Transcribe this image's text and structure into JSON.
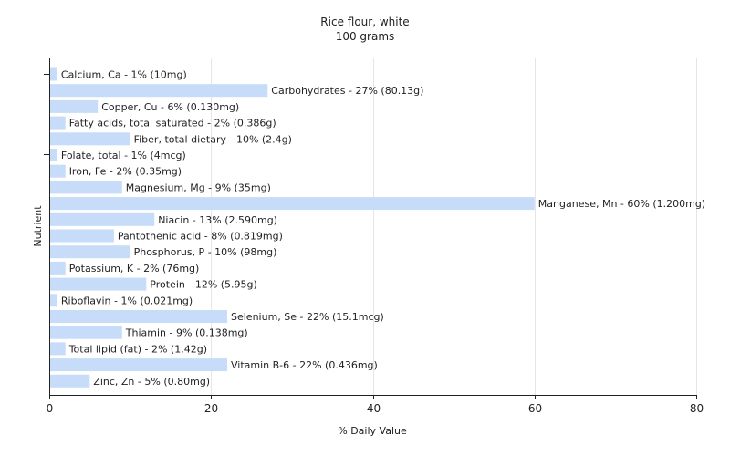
{
  "chart_data": {
    "type": "bar",
    "orientation": "horizontal",
    "title": "Rice flour, white",
    "subtitle": "100 grams",
    "xlabel": "% Daily Value",
    "ylabel": "Nutrient",
    "xlim": [
      0,
      80
    ],
    "x_ticks": [
      "0",
      "20",
      "40",
      "60",
      "80"
    ],
    "x_tick_values": [
      0,
      20,
      40,
      60,
      80
    ],
    "grid": true,
    "colors": {
      "bar": "#c6dcf9",
      "grid": "#e6e6e6",
      "axis": "#222222"
    },
    "categories": [
      "Calcium, Ca",
      "Carbohydrates",
      "Copper, Cu",
      "Fatty acids, total saturated",
      "Fiber, total dietary",
      "Folate, total",
      "Iron, Fe",
      "Magnesium, Mg",
      "Manganese, Mn",
      "Niacin",
      "Pantothenic acid",
      "Phosphorus, P",
      "Potassium, K",
      "Protein",
      "Riboflavin",
      "Selenium, Se",
      "Thiamin",
      "Total lipid (fat)",
      "Vitamin B-6",
      "Zinc, Zn"
    ],
    "values": [
      1,
      27,
      6,
      2,
      10,
      1,
      2,
      9,
      60,
      13,
      8,
      10,
      2,
      12,
      1,
      22,
      9,
      2,
      22,
      5
    ],
    "labels": [
      "Calcium, Ca - 1% (10mg)",
      "Carbohydrates - 27% (80.13g)",
      "Copper, Cu - 6% (0.130mg)",
      "Fatty acids, total saturated - 2% (0.386g)",
      "Fiber, total dietary - 10% (2.4g)",
      "Folate, total - 1% (4mcg)",
      "Iron, Fe - 2% (0.35mg)",
      "Magnesium, Mg - 9% (35mg)",
      "Manganese, Mn - 60% (1.200mg)",
      "Niacin - 13% (2.590mg)",
      "Pantothenic acid - 8% (0.819mg)",
      "Phosphorus, P - 10% (98mg)",
      "Potassium, K - 2% (76mg)",
      "Protein - 12% (5.95g)",
      "Riboflavin - 1% (0.021mg)",
      "Selenium, Se - 22% (15.1mcg)",
      "Thiamin - 9% (0.138mg)",
      "Total lipid (fat) - 2% (1.42g)",
      "Vitamin B-6 - 22% (0.436mg)",
      "Zinc, Zn - 5% (0.80mg)"
    ]
  }
}
